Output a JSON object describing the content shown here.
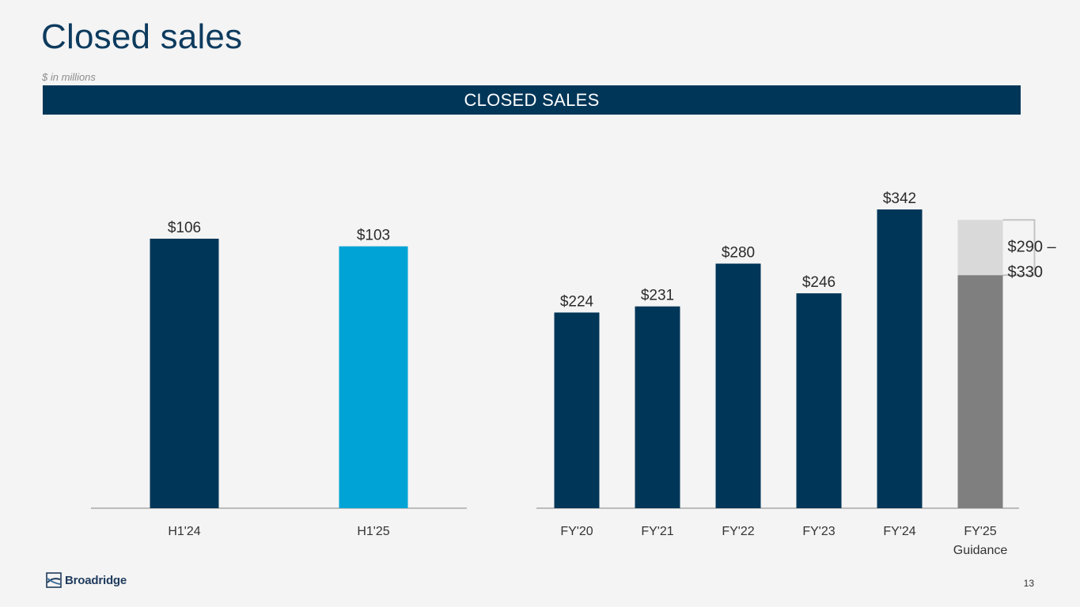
{
  "page": {
    "title": "Closed sales",
    "subtitle": "$ in millions",
    "banner": "CLOSED SALES",
    "page_number": "13",
    "logo_text": "Broadridge",
    "logo_icon": "broadridge-logo-icon"
  },
  "colors": {
    "navy": "#003658",
    "light_blue": "#00a3d6",
    "gray": "#7f7f7f",
    "light_gray": "#d9d9d9"
  },
  "chart_data": [
    {
      "type": "bar",
      "categories": [
        "H1'24",
        "H1'25"
      ],
      "values": [
        106,
        103
      ],
      "labels": [
        "$106",
        "$103"
      ],
      "colors": [
        "#003658",
        "#00a3d6"
      ],
      "ylim": [
        0,
        110
      ]
    },
    {
      "type": "bar",
      "categories": [
        "FY'20",
        "FY'21",
        "FY'22",
        "FY'23",
        "FY'24",
        "FY'25\nGuidance"
      ],
      "values": [
        224,
        231,
        280,
        246,
        342,
        null
      ],
      "labels": [
        "$224",
        "$231",
        "$280",
        "$246",
        "$342",
        ""
      ],
      "colors": [
        "#003658",
        "#003658",
        "#003658",
        "#003658",
        "#003658",
        "#7f7f7f"
      ],
      "guidance_range": {
        "low": 290,
        "high": 330,
        "label_line1": "$290 –",
        "label_line2": "$330"
      },
      "ylim": [
        0,
        342
      ]
    }
  ]
}
